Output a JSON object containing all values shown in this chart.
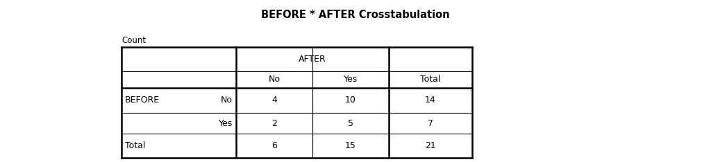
{
  "title": "BEFORE * AFTER Crosstabulation",
  "count_label": "Count",
  "background_color": "#ffffff",
  "title_fontsize": 10.5,
  "table_fontsize": 9,
  "count_fontsize": 8.5,
  "col_header_1": "AFTER",
  "col_sub_headers": [
    "No",
    "Yes",
    "Total"
  ],
  "row_headers": [
    "BEFORE",
    "",
    "Total"
  ],
  "row_sub_headers": [
    "No",
    "Yes",
    ""
  ],
  "data": [
    [
      4,
      10,
      14
    ],
    [
      2,
      5,
      7
    ],
    [
      6,
      15,
      21
    ]
  ],
  "lw_thick": 1.8,
  "lw_thin": 0.8
}
